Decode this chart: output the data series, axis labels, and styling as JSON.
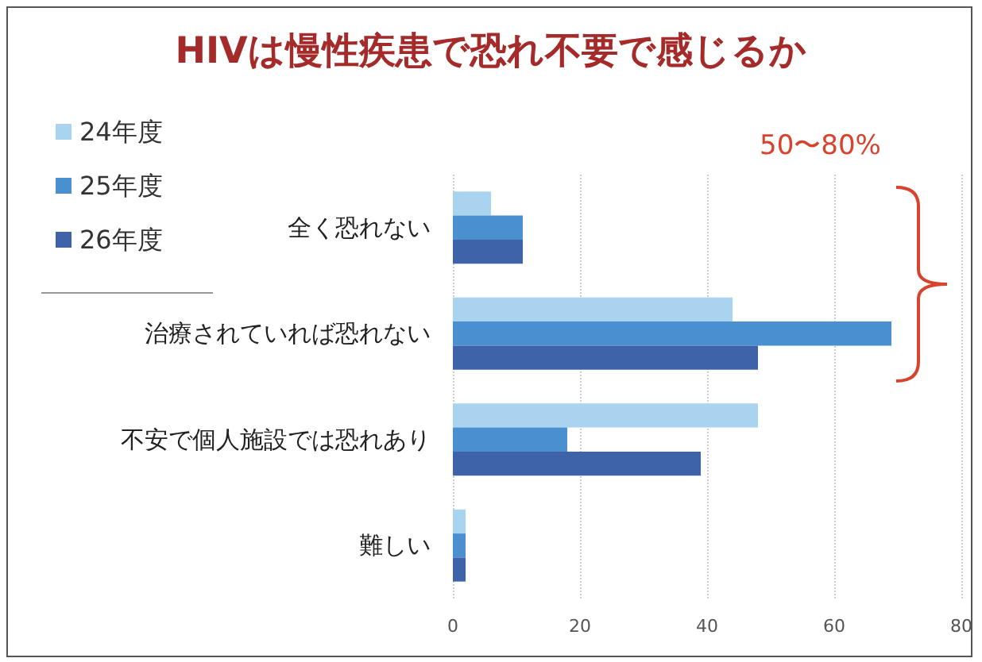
{
  "chart_data": {
    "type": "bar",
    "orientation": "horizontal",
    "title": "HIVは慢性疾患で恐れ不要で感じるか",
    "categories": [
      "全く恐れない",
      "治療されていれば恐れない",
      "不安で個人施設では恐れあり",
      "難しい"
    ],
    "series": [
      {
        "name": "24年度",
        "color": "#a9d3ee",
        "values": [
          6,
          44,
          48,
          2
        ]
      },
      {
        "name": "25年度",
        "color": "#4a8fd0",
        "values": [
          11,
          69,
          18,
          2
        ]
      },
      {
        "name": "26年度",
        "color": "#3f63a8",
        "values": [
          11,
          48,
          39,
          2
        ]
      }
    ],
    "xlim": [
      0,
      80
    ],
    "xticks": [
      0,
      20,
      40,
      60,
      80
    ],
    "grid": "x",
    "legend": "top left",
    "annotations": [
      "50〜80%"
    ]
  }
}
